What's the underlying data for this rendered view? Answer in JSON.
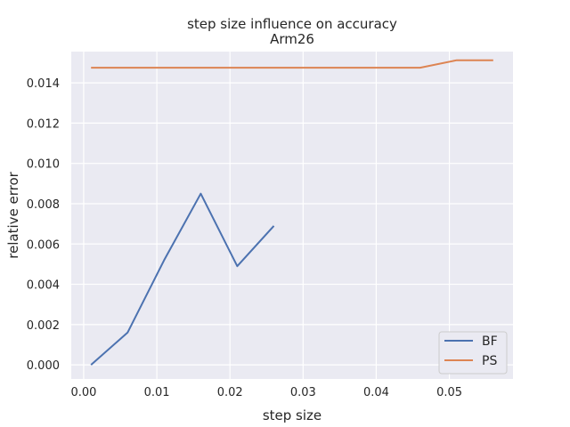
{
  "chart_data": {
    "type": "line",
    "title": "step size influence on accuracy",
    "subtitle": "Arm26",
    "xlabel": "step size",
    "ylabel": "relative error",
    "xlim": [
      -0.0017,
      0.0587
    ],
    "ylim": [
      -0.0007,
      0.01555
    ],
    "xticks": [
      0.0,
      0.01,
      0.02,
      0.03,
      0.04,
      0.05
    ],
    "xtick_labels": [
      "0.00",
      "0.01",
      "0.02",
      "0.03",
      "0.04",
      "0.05"
    ],
    "yticks": [
      0.0,
      0.002,
      0.004,
      0.006,
      0.008,
      0.01,
      0.012,
      0.014
    ],
    "ytick_labels": [
      "0.000",
      "0.002",
      "0.004",
      "0.006",
      "0.008",
      "0.010",
      "0.012",
      "0.014"
    ],
    "grid": true,
    "legend_position": "lower-right",
    "series": [
      {
        "name": "BF",
        "color": "#4c72b0",
        "x": [
          0.001,
          0.006,
          0.011,
          0.016,
          0.021,
          0.026
        ],
        "y": [
          0.0,
          0.0016,
          0.0052,
          0.0085,
          0.0049,
          0.0069
        ]
      },
      {
        "name": "PS",
        "color": "#dd8452",
        "x": [
          0.001,
          0.006,
          0.011,
          0.016,
          0.021,
          0.026,
          0.031,
          0.036,
          0.041,
          0.046,
          0.051,
          0.056
        ],
        "y": [
          0.01475,
          0.01475,
          0.01475,
          0.01475,
          0.01475,
          0.01475,
          0.01475,
          0.01475,
          0.01475,
          0.01475,
          0.01512,
          0.01512
        ]
      }
    ]
  },
  "colors": {
    "plot_background": "#eaeaf2",
    "grid": "#ffffff",
    "text": "#262626"
  }
}
